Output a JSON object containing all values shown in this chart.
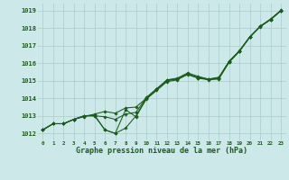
{
  "title": "Graphe pression niveau de la mer (hPa)",
  "hours": [
    0,
    1,
    2,
    3,
    4,
    5,
    6,
    7,
    8,
    9,
    10,
    11,
    12,
    13,
    14,
    15,
    16,
    17,
    18,
    19,
    20,
    21,
    22,
    23
  ],
  "ylim": [
    1011.6,
    1019.4
  ],
  "yticks": [
    1012,
    1013,
    1014,
    1015,
    1016,
    1017,
    1018,
    1019
  ],
  "bg_color": "#cce8e8",
  "grid_color": "#aacccc",
  "line_color": "#1a5c1a",
  "series1": [
    1012.2,
    1012.55,
    1012.55,
    1012.8,
    1012.95,
    1013.1,
    1013.25,
    1013.15,
    1013.45,
    1013.5,
    1014.0,
    1014.5,
    1015.05,
    1015.1,
    1015.4,
    1015.15,
    1015.1,
    1015.15,
    1016.1,
    1016.7,
    1017.5,
    1018.1,
    1018.5,
    1019.0
  ],
  "series2": [
    1012.2,
    1012.55,
    1012.55,
    1012.8,
    1013.0,
    1013.0,
    1012.95,
    1012.8,
    1013.1,
    1013.2,
    1014.05,
    1014.55,
    1015.05,
    1015.15,
    1015.45,
    1015.25,
    1015.1,
    1015.2,
    1016.12,
    1016.72,
    1017.52,
    1018.12,
    1018.52,
    1019.02
  ],
  "series3": [
    1012.2,
    1012.55,
    1012.55,
    1012.8,
    1013.0,
    1013.0,
    1012.2,
    1012.0,
    1012.3,
    1013.0,
    1014.0,
    1014.5,
    1015.0,
    1015.1,
    1015.35,
    1015.15,
    1015.05,
    1015.1,
    1016.05,
    1016.68,
    1017.48,
    1018.08,
    1018.48,
    1018.98
  ],
  "series4": [
    1012.2,
    1012.55,
    1012.55,
    1012.8,
    1013.0,
    1013.05,
    1012.2,
    1012.0,
    1013.35,
    1012.95,
    1013.95,
    1014.45,
    1014.95,
    1015.05,
    1015.38,
    1015.2,
    1015.08,
    1015.15,
    1016.08,
    1016.7,
    1017.5,
    1018.1,
    1018.5,
    1019.0
  ]
}
